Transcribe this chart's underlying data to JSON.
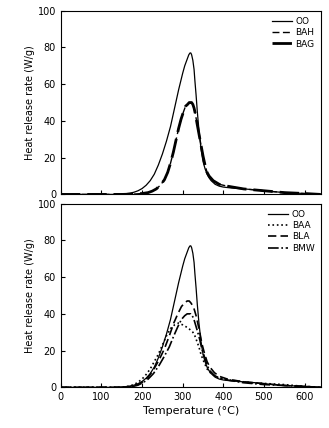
{
  "xlim": [
    0,
    640
  ],
  "ylim": [
    0,
    100
  ],
  "xticks": [
    0,
    100,
    200,
    300,
    400,
    500,
    600
  ],
  "yticks": [
    0,
    20,
    40,
    60,
    80,
    100
  ],
  "xlabel": "Temperature (°C)",
  "ylabel": "Heat release rate (W/g)",
  "line_color": "#000000",
  "panel1": {
    "legend": [
      "OO",
      "BAH",
      "BAG"
    ],
    "OO": {
      "temp": [
        0,
        100,
        130,
        150,
        160,
        170,
        180,
        190,
        200,
        210,
        220,
        230,
        240,
        250,
        260,
        270,
        280,
        290,
        300,
        305,
        310,
        315,
        318,
        320,
        322,
        325,
        328,
        330,
        333,
        336,
        340,
        345,
        350,
        355,
        360,
        365,
        370,
        375,
        380,
        390,
        400,
        420,
        450,
        480,
        500,
        550,
        600,
        640
      ],
      "hrr": [
        0,
        0,
        0,
        0.2,
        0.4,
        0.7,
        1.2,
        2.0,
        3.2,
        5.0,
        7.5,
        11,
        16,
        22,
        29,
        37,
        47,
        57,
        66,
        70,
        73,
        76,
        77,
        77,
        76,
        73,
        68,
        62,
        54,
        45,
        35,
        25,
        18,
        14,
        11,
        9,
        7.5,
        6.5,
        5.5,
        4.5,
        4,
        3.5,
        3,
        2.5,
        2,
        1,
        0.5,
        0
      ]
    },
    "BAH": {
      "temp": [
        0,
        100,
        150,
        180,
        200,
        215,
        225,
        235,
        245,
        255,
        263,
        270,
        277,
        283,
        290,
        296,
        302,
        307,
        312,
        316,
        319,
        322,
        325,
        328,
        331,
        335,
        340,
        345,
        350,
        355,
        360,
        365,
        375,
        390,
        410,
        450,
        500,
        550,
        600,
        640
      ],
      "hrr": [
        0,
        0,
        0,
        0.2,
        0.5,
        1.0,
        1.8,
        3.0,
        5.0,
        8.0,
        12,
        17,
        23,
        29,
        36,
        41,
        45,
        48,
        49,
        50,
        50,
        50,
        49,
        47,
        44,
        39,
        33,
        27,
        21,
        16,
        12,
        10,
        7.5,
        5.5,
        4.5,
        3,
        2,
        1,
        0.5,
        0
      ]
    },
    "BAG": {
      "temp": [
        0,
        100,
        150,
        180,
        200,
        215,
        225,
        235,
        245,
        255,
        263,
        270,
        277,
        283,
        290,
        296,
        302,
        307,
        312,
        316,
        319,
        322,
        325,
        328,
        331,
        335,
        340,
        345,
        350,
        355,
        360,
        365,
        375,
        390,
        410,
        450,
        500,
        550,
        600,
        640
      ],
      "hrr": [
        0,
        0,
        0,
        0.2,
        0.5,
        1.0,
        1.8,
        3.0,
        5.0,
        8.0,
        12,
        17,
        23,
        29,
        36,
        41,
        45,
        48,
        49,
        50,
        50,
        50,
        49,
        47,
        44,
        39,
        33,
        27,
        21,
        16,
        12,
        10,
        7.5,
        5.5,
        4.5,
        3,
        2,
        1,
        0.5,
        0
      ]
    }
  },
  "panel2": {
    "legend": [
      "OO",
      "BAA",
      "BLA",
      "BMW"
    ],
    "OO": {
      "temp": [
        0,
        100,
        130,
        150,
        160,
        170,
        180,
        190,
        200,
        210,
        220,
        230,
        240,
        250,
        260,
        270,
        280,
        290,
        300,
        305,
        310,
        315,
        318,
        320,
        322,
        325,
        328,
        330,
        333,
        336,
        340,
        345,
        350,
        355,
        360,
        365,
        370,
        375,
        380,
        390,
        400,
        420,
        450,
        480,
        500,
        550,
        600,
        640
      ],
      "hrr": [
        0,
        0,
        0,
        0.2,
        0.4,
        0.7,
        1.2,
        2.0,
        3.2,
        5.0,
        7.5,
        11,
        16,
        22,
        29,
        37,
        47,
        57,
        66,
        70,
        73,
        76,
        77,
        77,
        76,
        73,
        68,
        62,
        54,
        45,
        35,
        25,
        18,
        14,
        11,
        9,
        7.5,
        6.5,
        5.5,
        4.5,
        4,
        3.5,
        3,
        2.5,
        2,
        1,
        0.5,
        0
      ]
    },
    "BAA": {
      "temp": [
        0,
        100,
        150,
        160,
        170,
        180,
        190,
        200,
        210,
        220,
        230,
        240,
        250,
        260,
        270,
        280,
        290,
        300,
        308,
        315,
        320,
        325,
        330,
        335,
        340,
        345,
        350,
        360,
        370,
        385,
        400,
        430,
        470,
        510,
        550,
        600,
        640
      ],
      "hrr": [
        0,
        0,
        0,
        0.3,
        0.8,
        1.5,
        2.8,
        4.5,
        7.0,
        10,
        14,
        18,
        23,
        28,
        32,
        34,
        35,
        34,
        33,
        32,
        31,
        30,
        28,
        25,
        22,
        18,
        15,
        10,
        7.5,
        5.5,
        4.5,
        3.5,
        2.5,
        2,
        1.5,
        0.5,
        0
      ]
    },
    "BLA": {
      "temp": [
        0,
        100,
        150,
        165,
        178,
        190,
        202,
        215,
        228,
        242,
        255,
        267,
        278,
        288,
        297,
        305,
        311,
        316,
        320,
        323,
        326,
        329,
        333,
        337,
        342,
        347,
        353,
        360,
        367,
        378,
        390,
        410,
        450,
        500,
        550,
        600,
        640
      ],
      "hrr": [
        0,
        0,
        0,
        0.2,
        0.6,
        1.5,
        3.0,
        5.5,
        9.5,
        15,
        21,
        28,
        35,
        40,
        44,
        46,
        47,
        47,
        46,
        45,
        44,
        42,
        39,
        35,
        30,
        24,
        19,
        14,
        11,
        8,
        6,
        4.5,
        3,
        2,
        1,
        0.5,
        0
      ]
    },
    "BMW": {
      "temp": [
        0,
        100,
        150,
        165,
        178,
        190,
        202,
        215,
        228,
        242,
        255,
        267,
        278,
        288,
        297,
        305,
        311,
        316,
        320,
        323,
        326,
        329,
        333,
        337,
        342,
        347,
        353,
        360,
        367,
        378,
        390,
        410,
        450,
        500,
        550,
        600,
        640
      ],
      "hrr": [
        0,
        0,
        0,
        0.2,
        0.5,
        1.2,
        2.5,
        4.5,
        7.5,
        12,
        17,
        22,
        28,
        33,
        37,
        39,
        40,
        40,
        40,
        39,
        38,
        36,
        33,
        30,
        26,
        21,
        17,
        12,
        9,
        6.5,
        5,
        4,
        2.5,
        1.5,
        1,
        0.5,
        0
      ]
    }
  }
}
